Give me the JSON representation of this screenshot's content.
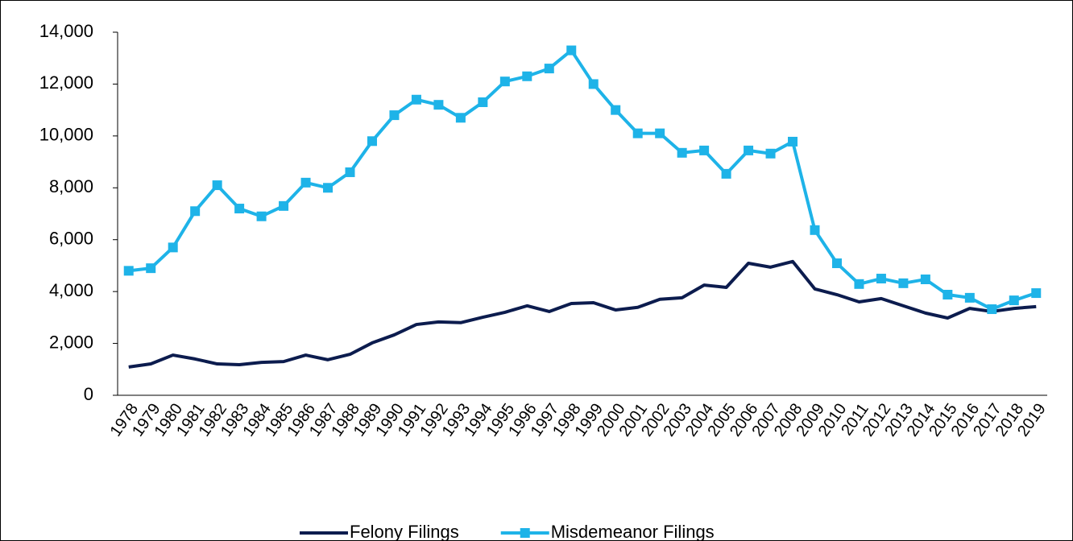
{
  "chart_data": {
    "type": "line",
    "categories": [
      "1978",
      "1979",
      "1980",
      "1981",
      "1982",
      "1983",
      "1984",
      "1985",
      "1986",
      "1987",
      "1988",
      "1989",
      "1990",
      "1991",
      "1992",
      "1993",
      "1994",
      "1995",
      "1996",
      "1997",
      "1998",
      "1999",
      "2000",
      "2001",
      "2002",
      "2003",
      "2004",
      "2005",
      "2006",
      "2007",
      "2008",
      "2009",
      "2010",
      "2011",
      "2012",
      "2013",
      "2014",
      "2015",
      "2016",
      "2017",
      "2018",
      "2019"
    ],
    "series": [
      {
        "name": "Felony Filings",
        "color": "#0c1c4e",
        "marker": "none",
        "values": [
          1090,
          1210,
          1550,
          1400,
          1210,
          1180,
          1270,
          1300,
          1550,
          1370,
          1580,
          2020,
          2330,
          2730,
          2830,
          2800,
          3010,
          3200,
          3450,
          3230,
          3540,
          3570,
          3290,
          3390,
          3700,
          3760,
          4250,
          4160,
          5090,
          4940,
          5160,
          4100,
          3880,
          3600,
          3730,
          3450,
          3170,
          2980,
          3350,
          3230,
          3350,
          3420
        ]
      },
      {
        "name": "Misdemeanor Filings",
        "color": "#1eb3e8",
        "marker": "square",
        "values": [
          4800,
          4900,
          5700,
          7100,
          8100,
          7200,
          6900,
          7300,
          8200,
          8000,
          8600,
          9800,
          10800,
          11400,
          11200,
          10700,
          11300,
          12100,
          12300,
          12600,
          13300,
          12000,
          11000,
          10100,
          10100,
          9350,
          9440,
          8540,
          9440,
          9320,
          9780,
          6370,
          5090,
          4290,
          4500,
          4320,
          4470,
          3880,
          3760,
          3320,
          3660,
          3940
        ]
      }
    ],
    "ylim": [
      0,
      14000
    ],
    "yticks": [
      0,
      {
        "value": 2000,
        "label": "2,000"
      },
      {
        "value": 4000,
        "label": "4,000"
      },
      {
        "value": 6000,
        "label": "6,000"
      },
      {
        "value": 8000,
        "label": "8,000"
      },
      {
        "value": 10000,
        "label": "10,000"
      },
      {
        "value": 12000,
        "label": "12,000"
      },
      {
        "value": 14000,
        "label": "14,000"
      }
    ],
    "legend": "bottom"
  }
}
